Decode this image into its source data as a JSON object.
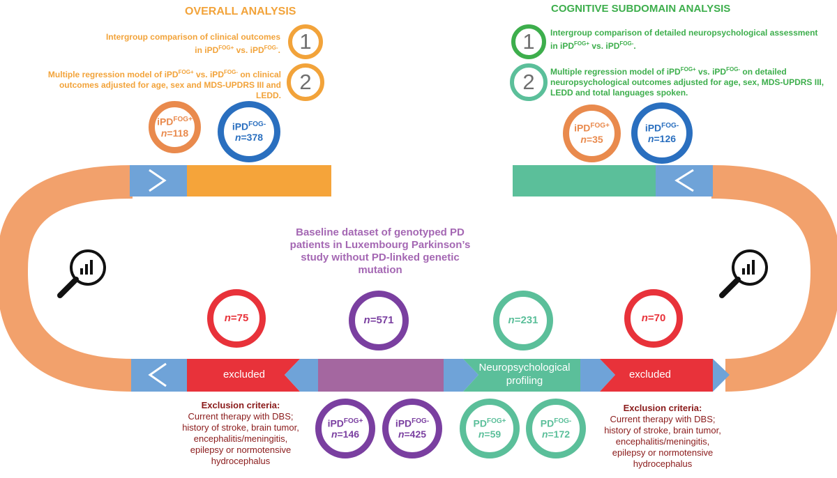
{
  "colors": {
    "orange_text": "#f2a33a",
    "orange_circle": "#e98a4d",
    "blue": "#2a6fbf",
    "green_text": "#3dae4c",
    "teal": "#5bbf9a",
    "purple": "#7a3fa0",
    "purple_text": "#a467b3",
    "red": "#e8323a",
    "dark_red": "#8a1a1a",
    "light_blue": "#6fa3d8",
    "salmon": "#f2a16c"
  },
  "overall": {
    "title": "OVERALL ANALYSIS",
    "item1": {
      "number": "1",
      "line1_a": "Intergroup comparison of clinical outcomes",
      "line2": "in iPD",
      "fog_plus": "FOG+",
      "vs": " vs. iPD",
      "fog_minus": "FOG-",
      "end": "."
    },
    "item2": {
      "number": "2",
      "text_a": "Multiple regression model of iPD",
      "fog_plus": "FOG+",
      "vs": " vs. iPD",
      "fog_minus": "FOG-",
      "text_b": " on clinical",
      "line2": "outcomes adjusted for age, sex and MDS-UPDRS III and LEDD."
    },
    "group_plus": {
      "label": "iPD",
      "sup": "FOG+",
      "n": "n",
      "value": "=118"
    },
    "group_minus": {
      "label": "iPD",
      "sup": "FOG-",
      "n": "n",
      "value": "=378"
    }
  },
  "cognitive": {
    "title": "COGNITIVE SUBDOMAIN ANALYSIS",
    "item1": {
      "number": "1",
      "line1": "Intergroup comparison of detailed neuropsychological assessment",
      "line2": "in iPD",
      "fog_plus": "FOG+",
      "vs": " vs. iPD",
      "fog_minus": "FOG-",
      "end": "."
    },
    "item2": {
      "number": "2",
      "text_a": "Multiple regression model of iPD",
      "fog_plus": "FOG+",
      "vs": " vs. iPD",
      "fog_minus": "FOG-",
      "text_b": " on detailed",
      "line2": "neuropsychological outcomes adjusted for age, sex, MDS-UPDRS III,",
      "line3": "LEDD and total languages spoken."
    },
    "group_plus": {
      "label": "iPD",
      "sup": "FOG+",
      "n": "n",
      "value": "=35"
    },
    "group_minus": {
      "label": "iPD",
      "sup": "FOG-",
      "n": "n",
      "value": "=126"
    }
  },
  "baseline": {
    "line1": "Baseline dataset of genotyped PD",
    "line2": "patients in Luxembourg Parkinson’s",
    "line3": "study without PD-linked genetic",
    "line4": "mutation"
  },
  "counts": {
    "excluded_left": {
      "n": "n",
      "value": "=75"
    },
    "baseline": {
      "n": "n",
      "value": "=571"
    },
    "neuro": {
      "n": "n",
      "value": "=231"
    },
    "excluded_right": {
      "n": "n",
      "value": "=70"
    }
  },
  "bar": {
    "excluded_left": "excluded",
    "neuro_line1": "Neuropsychological",
    "neuro_line2": "profiling",
    "excluded_right": "excluded"
  },
  "bottom_groups": {
    "ipd_plus": {
      "label": "iPD",
      "sup": "FOG+",
      "n": "n",
      "value": "=146"
    },
    "ipd_minus": {
      "label": "iPD",
      "sup": "FOG-",
      "n": "n",
      "value": "=425"
    },
    "pd_plus": {
      "label": "PD",
      "sup": "FOG+",
      "n": "n",
      "value": "=59"
    },
    "pd_minus": {
      "label": "PD",
      "sup": "FOG-",
      "n": "n",
      "value": "=172"
    }
  },
  "exclusion": {
    "title": "Exclusion criteria:",
    "line1": "Current therapy with DBS;",
    "line2": "history of stroke, brain tumor,",
    "line3": "encephalitis/meningitis,",
    "line4": "epilepsy or normotensive",
    "line5": "hydrocephalus"
  },
  "icons": {
    "left": "magnifier-chart-icon",
    "right": "magnifier-chart-icon"
  }
}
